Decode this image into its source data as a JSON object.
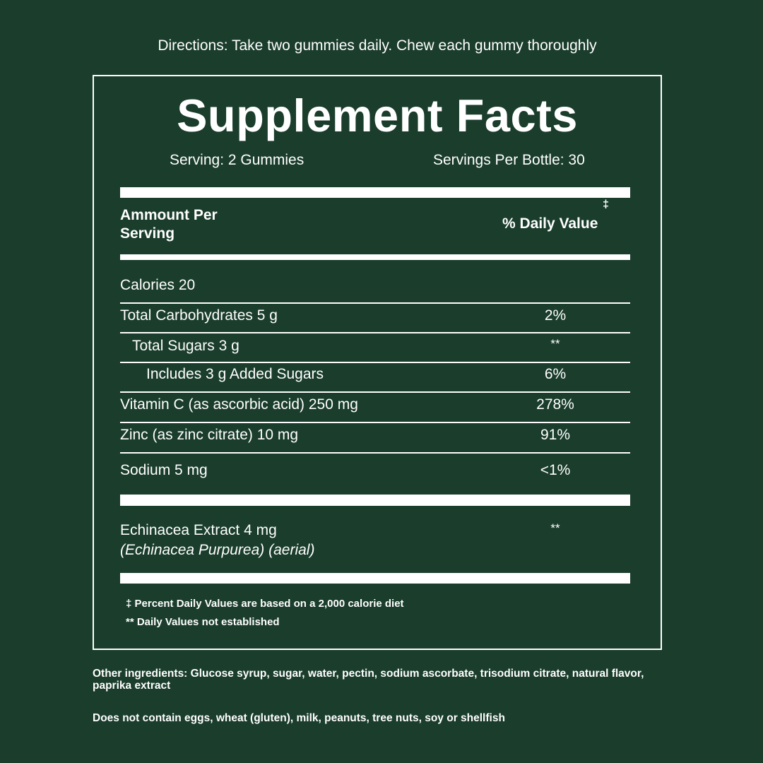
{
  "directions": "Directions: Take two gummies daily. Chew each gummy thoroughly",
  "title": "Supplement Facts",
  "serving": "Serving: 2 Gummies",
  "servings_per_bottle": "Servings Per Bottle: 30",
  "header": {
    "amount_line1": "Ammount Per",
    "amount_line2": "Serving",
    "dagger": "‡",
    "daily_value": "% Daily Value"
  },
  "rows": [
    {
      "label": "Calories 20",
      "dv": ""
    },
    {
      "label": "Total Carbohydrates 5 g",
      "dv": "2%"
    },
    {
      "label": "Total Sugars 3 g",
      "dv": "**"
    },
    {
      "label": "Includes 3 g Added Sugars",
      "dv": "6%"
    },
    {
      "label": "Vitamin C (as ascorbic acid) 250 mg",
      "dv": "278%"
    },
    {
      "label": "Zinc (as zinc citrate) 10 mg",
      "dv": "91%"
    },
    {
      "label": "Sodium 5 mg",
      "dv": "<1%"
    }
  ],
  "extract": {
    "label": "Echinacea Extract 4 mg",
    "sub": "(Echinacea Purpurea) (aerial)",
    "dv": "**"
  },
  "footnotes": [
    "‡ Percent Daily Values are based on a 2,000 calorie diet",
    "** Daily Values not established"
  ],
  "other_ingredients": "Other ingredients: Glucose syrup, sugar, water, pectin, sodium ascorbate, trisodium citrate, natural flavor, paprika extract",
  "allergens": "Does not contain eggs, wheat (gluten), milk, peanuts, tree nuts, soy or shellfish",
  "colors": {
    "background": "#1a3d2c",
    "text": "#ffffff"
  }
}
